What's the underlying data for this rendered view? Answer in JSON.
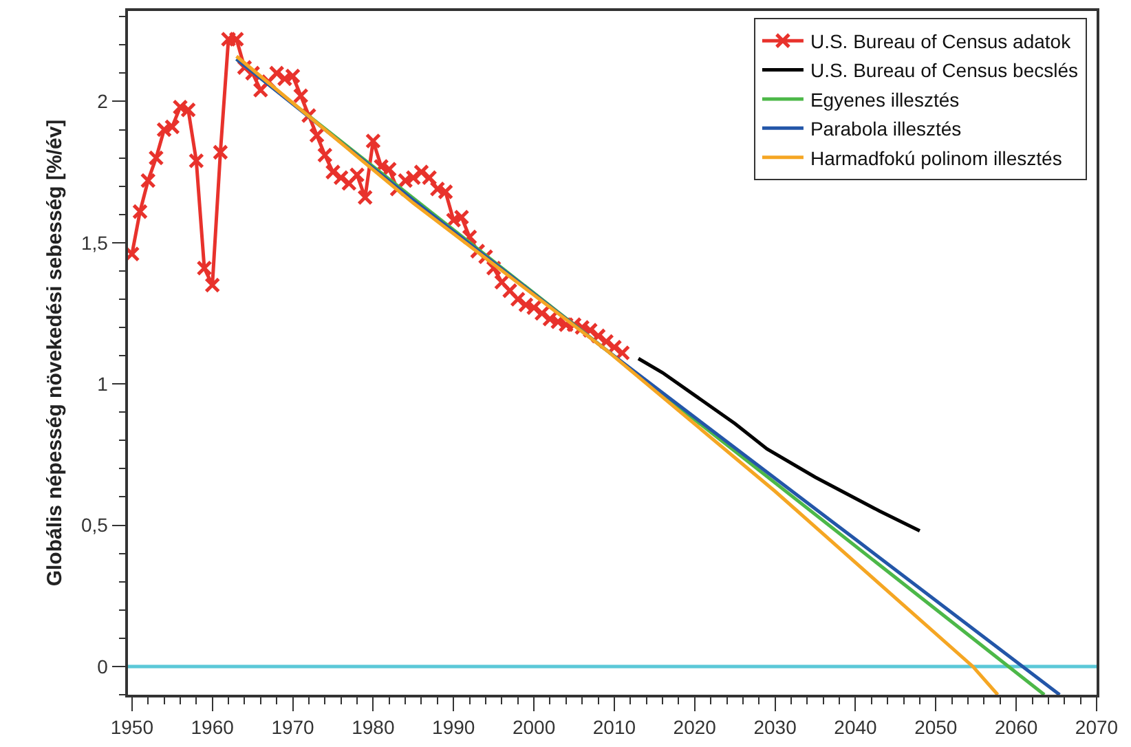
{
  "chart_data": {
    "type": "line",
    "ylabel": "Globális népesség növekedési sebesség [%/év]",
    "xlim": [
      1949.5,
      2070
    ],
    "xticks": [
      1950,
      1960,
      1970,
      1980,
      1990,
      2000,
      2010,
      2020,
      2030,
      2040,
      2050,
      2060,
      2070
    ],
    "ylim": [
      -0.1,
      2.32
    ],
    "yticks": [
      {
        "value": 0,
        "label": "0"
      },
      {
        "value": 0.5,
        "label": "0,5"
      },
      {
        "value": 1,
        "label": "1"
      },
      {
        "value": 1.5,
        "label": "1,5"
      },
      {
        "value": 2,
        "label": "2"
      }
    ],
    "grid": false,
    "legend": "top right",
    "line_style": "solid",
    "ref_lines": [
      {
        "axis": "y",
        "value": 0,
        "color": "#5bc8d8"
      }
    ],
    "series": [
      {
        "name": "U.S. Bureau of Census adatok",
        "color": "#e8322c",
        "marker": "cross",
        "x": [
          1950,
          1951,
          1952,
          1953,
          1954,
          1955,
          1956,
          1957,
          1958,
          1959,
          1960,
          1961,
          1962,
          1963,
          1964,
          1965,
          1966,
          1967,
          1968,
          1969,
          1970,
          1971,
          1972,
          1973,
          1974,
          1975,
          1976,
          1977,
          1978,
          1979,
          1980,
          1981,
          1982,
          1983,
          1984,
          1985,
          1986,
          1987,
          1988,
          1989,
          1990,
          1991,
          1992,
          1993,
          1994,
          1995,
          1996,
          1997,
          1998,
          1999,
          2000,
          2001,
          2002,
          2003,
          2004,
          2005,
          2006,
          2007,
          2008,
          2009,
          2010,
          2011
        ],
        "values": [
          1.46,
          1.61,
          1.72,
          1.8,
          1.9,
          1.91,
          1.98,
          1.97,
          1.79,
          1.41,
          1.35,
          1.82,
          2.22,
          2.22,
          2.12,
          2.1,
          2.04,
          2.07,
          2.1,
          2.08,
          2.09,
          2.02,
          1.95,
          1.88,
          1.81,
          1.75,
          1.73,
          1.71,
          1.74,
          1.66,
          1.86,
          1.77,
          1.76,
          1.69,
          1.72,
          1.73,
          1.75,
          1.73,
          1.69,
          1.68,
          1.58,
          1.59,
          1.52,
          1.47,
          1.45,
          1.41,
          1.36,
          1.33,
          1.3,
          1.28,
          1.27,
          1.25,
          1.23,
          1.22,
          1.21,
          1.21,
          1.2,
          1.19,
          1.17,
          1.15,
          1.13,
          1.11
        ]
      },
      {
        "name": "U.S. Bureau of Census becslés",
        "color": "#000000",
        "marker": "none",
        "x": [
          2013,
          2016,
          2020,
          2025,
          2029,
          2035,
          2043,
          2048
        ],
        "values": [
          1.09,
          1.04,
          0.96,
          0.86,
          0.77,
          0.67,
          0.55,
          0.48
        ]
      },
      {
        "name": "Egyenes illesztés",
        "color": "#4cb848",
        "marker": "none",
        "x": [
          1963,
          2063.5
        ],
        "values": [
          2.15,
          -0.1
        ]
      },
      {
        "name": "Parabola illesztés",
        "color": "#2356a8",
        "marker": "none",
        "x": [
          1963,
          1985,
          2009,
          2040,
          2065.4
        ],
        "values": [
          2.15,
          1.65,
          1.12,
          0.45,
          -0.1
        ]
      },
      {
        "name": "Harmadfokú polinom illesztés",
        "color": "#f5a623",
        "marker": "none",
        "x": [
          1963,
          1985,
          2009,
          2030,
          2054.6,
          2057.7
        ],
        "values": [
          2.16,
          1.64,
          1.12,
          0.62,
          0,
          -0.1
        ]
      }
    ]
  }
}
